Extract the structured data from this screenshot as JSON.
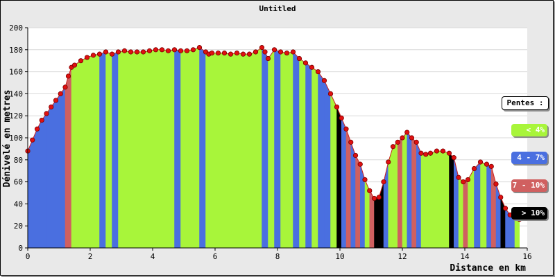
{
  "chart_data": {
    "type": "area",
    "title": "Untitled",
    "xlabel": "Distance en km",
    "ylabel": "Dénivelé en metres",
    "xlim": [
      0,
      16
    ],
    "ylim": [
      0,
      200
    ],
    "xticks": [
      0,
      2,
      4,
      6,
      8,
      10,
      12,
      14,
      16
    ],
    "yticks": [
      0,
      20,
      40,
      60,
      80,
      100,
      120,
      140,
      160,
      180,
      200
    ],
    "grid": "horizontal",
    "legend_position": "right",
    "legend": {
      "title": "Pentes :",
      "items": [
        {
          "label": "< 4%",
          "color": "#a8f53a",
          "text_color": "#ffffff"
        },
        {
          "label": "4 - 7%",
          "color": "#4a6fe0",
          "text_color": "#ffffff"
        },
        {
          "label": "7 - 10%",
          "color": "#d06060",
          "text_color": "#ffffff"
        },
        {
          "label": "> 10%",
          "color": "#000000",
          "text_color": "#ffffff"
        }
      ]
    },
    "marker_color": "#e01010",
    "x": [
      0.0,
      0.15,
      0.3,
      0.45,
      0.6,
      0.75,
      0.9,
      1.05,
      1.2,
      1.3,
      1.4,
      1.5,
      1.7,
      1.9,
      2.1,
      2.3,
      2.5,
      2.7,
      2.9,
      3.1,
      3.3,
      3.5,
      3.7,
      3.9,
      4.1,
      4.3,
      4.5,
      4.7,
      4.9,
      5.1,
      5.3,
      5.5,
      5.7,
      5.8,
      5.9,
      6.1,
      6.3,
      6.5,
      6.7,
      6.9,
      7.1,
      7.3,
      7.5,
      7.6,
      7.7,
      7.9,
      8.1,
      8.3,
      8.5,
      8.7,
      8.9,
      9.1,
      9.3,
      9.5,
      9.7,
      9.9,
      10.05,
      10.2,
      10.35,
      10.5,
      10.65,
      10.8,
      10.95,
      11.1,
      11.25,
      11.4,
      11.55,
      11.7,
      11.85,
      12.0,
      12.15,
      12.3,
      12.45,
      12.6,
      12.75,
      12.9,
      13.1,
      13.3,
      13.5,
      13.65,
      13.8,
      13.95,
      14.1,
      14.3,
      14.5,
      14.7,
      14.85,
      15.0,
      15.15,
      15.3,
      15.45,
      15.6,
      15.75
    ],
    "y": [
      88,
      98,
      108,
      116,
      122,
      128,
      134,
      140,
      146,
      156,
      164,
      166,
      170,
      173,
      175,
      176,
      178,
      176,
      178,
      179,
      178,
      178,
      178,
      179,
      180,
      180,
      179,
      180,
      179,
      179,
      180,
      182,
      178,
      176,
      177,
      177,
      177,
      176,
      177,
      176,
      176,
      178,
      182,
      178,
      172,
      180,
      178,
      177,
      178,
      172,
      168,
      164,
      160,
      152,
      140,
      128,
      118,
      108,
      96,
      84,
      76,
      62,
      52,
      45,
      46,
      60,
      78,
      92,
      96,
      100,
      105,
      100,
      96,
      86,
      85,
      86,
      88,
      88,
      86,
      82,
      64,
      60,
      62,
      72,
      78,
      76,
      74,
      58,
      46,
      36,
      30,
      28,
      26
    ],
    "slope_colors": [
      "#4a6fe0",
      "#4a6fe0",
      "#4a6fe0",
      "#4a6fe0",
      "#4a6fe0",
      "#4a6fe0",
      "#4a6fe0",
      "#4a6fe0",
      "#d06060",
      "#d06060",
      "#a8f53a",
      "#a8f53a",
      "#a8f53a",
      "#a8f53a",
      "#a8f53a",
      "#4a6fe0",
      "#a8f53a",
      "#4a6fe0",
      "#a8f53a",
      "#a8f53a",
      "#a8f53a",
      "#a8f53a",
      "#a8f53a",
      "#a8f53a",
      "#a8f53a",
      "#a8f53a",
      "#a8f53a",
      "#4a6fe0",
      "#a8f53a",
      "#a8f53a",
      "#a8f53a",
      "#4a6fe0",
      "#a8f53a",
      "#a8f53a",
      "#a8f53a",
      "#a8f53a",
      "#a8f53a",
      "#a8f53a",
      "#a8f53a",
      "#a8f53a",
      "#a8f53a",
      "#a8f53a",
      "#4a6fe0",
      "#4a6fe0",
      "#a8f53a",
      "#4a6fe0",
      "#a8f53a",
      "#a8f53a",
      "#4a6fe0",
      "#a8f53a",
      "#4a6fe0",
      "#a8f53a",
      "#4a6fe0",
      "#4a6fe0",
      "#a8f53a",
      "#000000",
      "#4a6fe0",
      "#d06060",
      "#4a6fe0",
      "#d06060",
      "#4a6fe0",
      "#a8f53a",
      "#d06060",
      "#000000",
      "#000000",
      "#4a6fe0",
      "#a8f53a",
      "#a8f53a",
      "#d06060",
      "#a8f53a",
      "#4a6fe0",
      "#d06060",
      "#4a6fe0",
      "#a8f53a",
      "#a8f53a",
      "#a8f53a",
      "#a8f53a",
      "#a8f53a",
      "#000000",
      "#4a6fe0",
      "#a8f53a",
      "#d06060",
      "#a8f53a",
      "#4a6fe0",
      "#a8f53a",
      "#4a6fe0",
      "#d06060",
      "#4a6fe0",
      "#000000",
      "#4a6fe0",
      "#4a6fe0",
      "#a8f53a"
    ]
  }
}
